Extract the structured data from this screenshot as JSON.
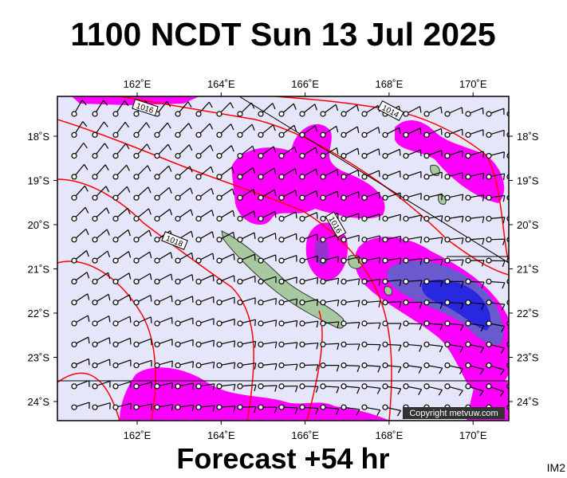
{
  "header": {
    "title": "1100 NCDT Sun 13 Jul 2025"
  },
  "map": {
    "lon_labels": [
      "162˚E",
      "164˚E",
      "166˚E",
      "168˚E",
      "170˚E"
    ],
    "lat_labels": [
      "18˚S",
      "19˚S",
      "20˚S",
      "21˚S",
      "22˚S",
      "23˚S",
      "24˚S"
    ],
    "contour_labels": [
      "1016",
      "1014",
      "1016",
      "1018"
    ],
    "copyright": "Copyright metvuw.com"
  },
  "footer": {
    "forecast": "Forecast +54 hr",
    "image_id": "IM2"
  }
}
